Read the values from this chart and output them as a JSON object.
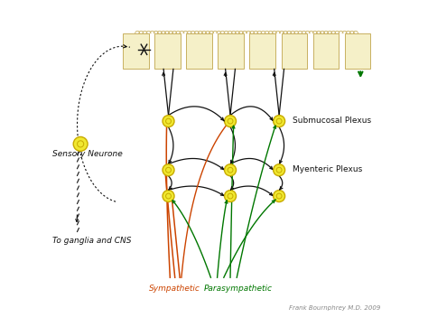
{
  "bg_color": "#ffffff",
  "intestine_color": "#f5f0c8",
  "intestine_border": "#c8b060",
  "neuron_face": "#f0e830",
  "neuron_edge": "#c8aa00",
  "black": "#111111",
  "red": "#cc4400",
  "green": "#007700",
  "labels": {
    "sensory_neuron": "Sensory Neurone",
    "submucosal": "Submucosal Plexus",
    "myenteric": "Myenteric Plexus",
    "sympathetic": "Sympathetic",
    "parasympathetic": "Parasympathetic",
    "ganglia": "To ganglia and CNS",
    "credit": "Frank Bournphrey M.D. 2009"
  },
  "label_fontsize": 6.5,
  "credit_fontsize": 5,
  "figsize": [
    4.74,
    3.62
  ],
  "dpi": 100,
  "xlim": [
    0,
    10
  ],
  "ylim": [
    0,
    10
  ]
}
